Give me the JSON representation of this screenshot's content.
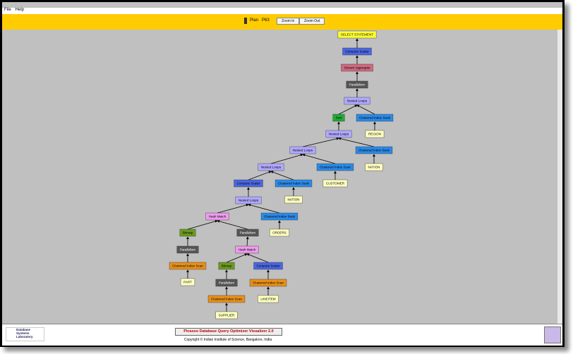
{
  "menu": [
    "File",
    "Help"
  ],
  "toolbar": {
    "plan_label": "Plan",
    "plan_id": "P63",
    "zoom_in": "Zoom In",
    "zoom_out": "Zoom Out"
  },
  "nodes": [
    {
      "label": "SELECT STATEMENT"
    },
    {
      "label": "Compute Scalar"
    },
    {
      "label": "Stream Aggregate"
    },
    {
      "label": "Parallelism"
    },
    {
      "label": "Nested Loops"
    },
    {
      "label": "Sort"
    },
    {
      "label": "Clustered Index Seek"
    },
    {
      "label": "REGION"
    },
    {
      "label": "Nested Loops"
    },
    {
      "label": "Clustered Index Seek"
    },
    {
      "label": "NATION"
    },
    {
      "label": "Nested Loops"
    },
    {
      "label": "Clustered Index Scan"
    },
    {
      "label": "CUSTOMER"
    },
    {
      "label": "Nested Loops"
    },
    {
      "label": "Compute Scalar"
    },
    {
      "label": "Clustered Index Seek"
    },
    {
      "label": "NATION"
    },
    {
      "label": "Nested Loops"
    },
    {
      "label": "Hash Match"
    },
    {
      "label": "Clustered Index Seek"
    },
    {
      "label": "ORDERS"
    },
    {
      "label": "Bitmap"
    },
    {
      "label": "Parallelism"
    },
    {
      "label": "Parallelism"
    },
    {
      "label": "Hash Match"
    },
    {
      "label": "Clustered Index Scan"
    },
    {
      "label": "Bitmap"
    },
    {
      "label": "Compute Scalar"
    },
    {
      "label": "PART"
    },
    {
      "label": "Parallelism"
    },
    {
      "label": "Clustered Index Scan"
    },
    {
      "label": "Clustered Index Scan"
    },
    {
      "label": "LINEITEM"
    },
    {
      "label": "SUPPLIER"
    }
  ],
  "footer": {
    "logo": "Database Systems Laboratory",
    "title": "Picasso Database Query Optimizer Visualizer 2.0",
    "copyright": "Copyright © Indian Institute of Science, Bangalore, India"
  }
}
